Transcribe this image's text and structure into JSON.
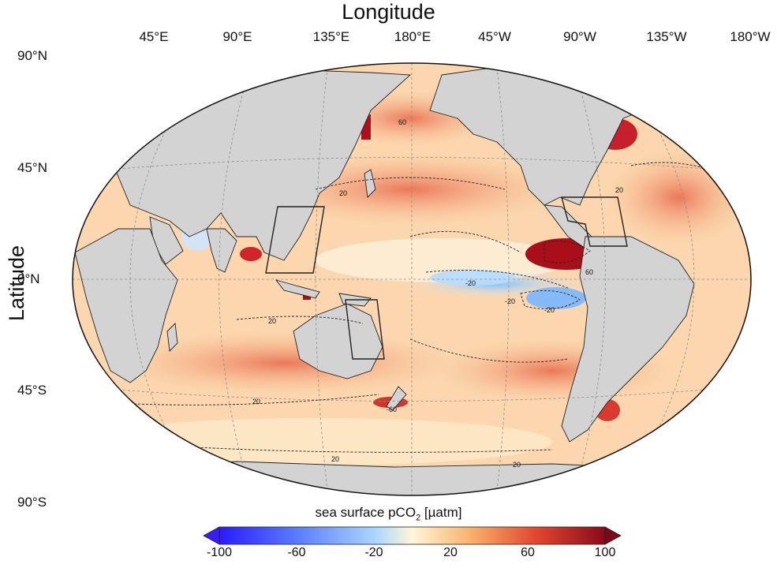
{
  "axes": {
    "x_title": "Longitude",
    "y_title": "Latitude",
    "lon_ticks": [
      "45°E",
      "90°E",
      "135°E",
      "180°E",
      "45°W",
      "90°W",
      "135°W",
      "180°W"
    ],
    "lat_ticks": [
      "90°N",
      "45°N",
      "0°N",
      "45°S",
      "90°S"
    ]
  },
  "colorbar": {
    "title_main": "sea surface pCO",
    "title_sub": "2",
    "title_unit": " [µatm]",
    "ticks": [
      "-100",
      "-60",
      "-20",
      "20",
      "60",
      "100"
    ],
    "range": [
      -100,
      100
    ],
    "colors": [
      "#2a1aff",
      "#5a7bff",
      "#a9d4ff",
      "#fff6d8",
      "#f8b36e",
      "#e2472f",
      "#8a0a1a"
    ]
  },
  "map": {
    "projection": "hammer-aitoff",
    "land_color": "#d3d3d3",
    "contour_labels": [
      "20",
      "20",
      "20",
      "-20",
      "-20",
      "-20",
      "60",
      "60",
      "-60",
      "20",
      "20",
      "20"
    ]
  }
}
